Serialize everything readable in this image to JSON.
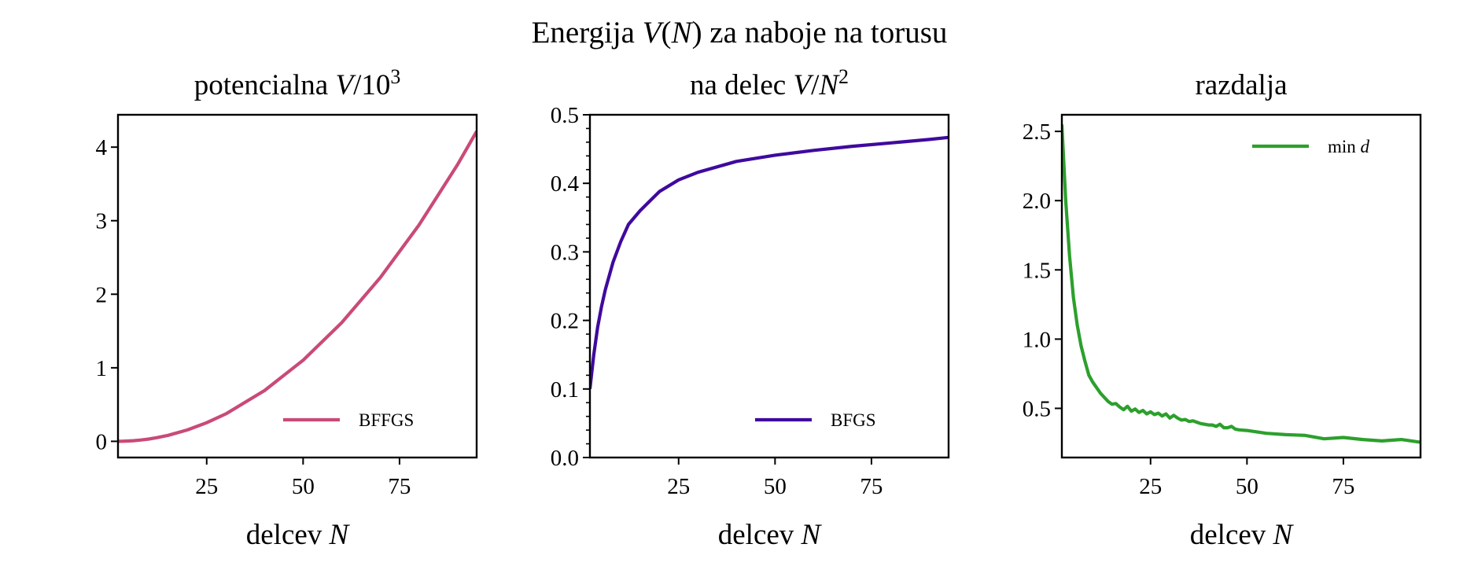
{
  "chart_data": {
    "type": "line",
    "suptitle": [
      {
        "t": "Energija "
      },
      {
        "t": "V",
        "i": true
      },
      {
        "t": "("
      },
      {
        "t": "N",
        "i": true
      },
      {
        "t": ") za naboje na torusu"
      }
    ],
    "panels": [
      {
        "title": [
          {
            "t": "potencialna "
          },
          {
            "t": "V",
            "i": true
          },
          {
            "t": "/10"
          },
          {
            "t": "3",
            "sup": true
          }
        ],
        "xlabel": [
          {
            "t": "delcev "
          },
          {
            "t": "N",
            "i": true
          }
        ],
        "xlim": [
          2,
          95
        ],
        "ylim": [
          -0.22,
          4.44
        ],
        "xticks": [
          25,
          50,
          75
        ],
        "yticks": [
          0,
          1,
          2,
          3,
          4
        ],
        "ytick_labels": [
          "0",
          "1",
          "2",
          "3",
          "4"
        ],
        "legend": {
          "label": "BFFGS",
          "placement": "lower-right"
        },
        "color": "#c94a78",
        "x": [
          2,
          3,
          4,
          5,
          6,
          8,
          10,
          12,
          15,
          20,
          25,
          30,
          40,
          50,
          60,
          70,
          80,
          90,
          95
        ],
        "y": [
          0.0004,
          0.0014,
          0.003,
          0.0055,
          0.0088,
          0.018,
          0.0315,
          0.049,
          0.081,
          0.155,
          0.253,
          0.374,
          0.691,
          1.103,
          1.613,
          2.225,
          2.938,
          3.758,
          4.215
        ]
      },
      {
        "title": [
          {
            "t": "na delec "
          },
          {
            "t": "V",
            "i": true
          },
          {
            "t": "/"
          },
          {
            "t": "N",
            "i": true
          },
          {
            "t": "2",
            "sup": true
          }
        ],
        "xlabel": [
          {
            "t": "delcev "
          },
          {
            "t": "N",
            "i": true
          }
        ],
        "xlim": [
          2,
          95
        ],
        "ylim": [
          0,
          0.5
        ],
        "xticks": [
          25,
          50,
          75
        ],
        "yticks": [
          0,
          0.1,
          0.2,
          0.3,
          0.4,
          0.5
        ],
        "ytick_labels": [
          "0.0",
          "0.1",
          "0.2",
          "0.3",
          "0.4",
          "0.5"
        ],
        "yminor_step": 0.02,
        "legend": {
          "label": "BFGS",
          "placement": "lower-right"
        },
        "color": "#3f0a9e",
        "x": [
          2,
          3,
          4,
          5,
          6,
          8,
          10,
          12,
          15,
          20,
          25,
          30,
          40,
          50,
          60,
          70,
          80,
          90,
          95
        ],
        "y": [
          0.1,
          0.15,
          0.19,
          0.22,
          0.245,
          0.285,
          0.315,
          0.34,
          0.36,
          0.388,
          0.405,
          0.416,
          0.432,
          0.441,
          0.448,
          0.454,
          0.459,
          0.464,
          0.467
        ]
      },
      {
        "title": [
          {
            "t": "razdalja"
          }
        ],
        "xlabel": [
          {
            "t": "delcev "
          },
          {
            "t": "N",
            "i": true
          }
        ],
        "xlim": [
          2,
          95
        ],
        "ylim": [
          0.145,
          2.62
        ],
        "xticks": [
          25,
          50,
          75
        ],
        "yticks": [
          0.5,
          1.0,
          1.5,
          2.0,
          2.5
        ],
        "ytick_labels": [
          "0.5",
          "1.0",
          "1.5",
          "2.0",
          "2.5"
        ],
        "legend": {
          "label": "min d",
          "label_parts": [
            {
              "t": "min "
            },
            {
              "t": "d",
              "i": true
            }
          ],
          "placement": "upper-right"
        },
        "color": "#2ca02c",
        "x": [
          2,
          3,
          4,
          5,
          6,
          7,
          8,
          9,
          10,
          11,
          12,
          13,
          14,
          15,
          16,
          17,
          18,
          19,
          20,
          21,
          22,
          23,
          24,
          25,
          26,
          27,
          28,
          29,
          30,
          31,
          32,
          33,
          34,
          35,
          36,
          37,
          38,
          39,
          40,
          41,
          42,
          43,
          44,
          45,
          46,
          47,
          48,
          50,
          55,
          60,
          65,
          70,
          75,
          80,
          85,
          90,
          95
        ],
        "y": [
          2.55,
          2.0,
          1.6,
          1.3,
          1.1,
          0.95,
          0.84,
          0.74,
          0.69,
          0.65,
          0.61,
          0.58,
          0.55,
          0.53,
          0.535,
          0.51,
          0.49,
          0.515,
          0.48,
          0.495,
          0.47,
          0.485,
          0.46,
          0.475,
          0.455,
          0.465,
          0.445,
          0.46,
          0.43,
          0.45,
          0.43,
          0.415,
          0.42,
          0.405,
          0.41,
          0.4,
          0.39,
          0.385,
          0.38,
          0.38,
          0.37,
          0.385,
          0.36,
          0.36,
          0.37,
          0.35,
          0.345,
          0.34,
          0.32,
          0.31,
          0.305,
          0.28,
          0.29,
          0.275,
          0.265,
          0.275,
          0.255
        ]
      }
    ]
  }
}
